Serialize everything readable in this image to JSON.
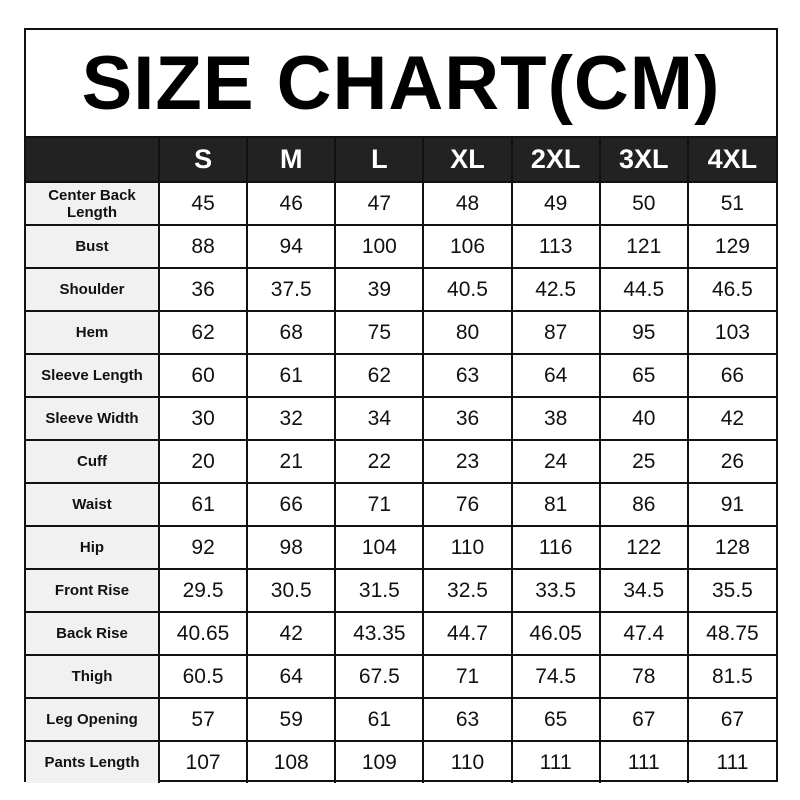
{
  "title": "SIZE CHART(CM)",
  "columns": [
    "",
    "S",
    "M",
    "L",
    "XL",
    "2XL",
    "3XL",
    "4XL"
  ],
  "rows": [
    {
      "label": "Center Back Length",
      "values": [
        "45",
        "46",
        "47",
        "48",
        "49",
        "50",
        "51"
      ]
    },
    {
      "label": "Bust",
      "values": [
        "88",
        "94",
        "100",
        "106",
        "113",
        "121",
        "129"
      ]
    },
    {
      "label": "Shoulder",
      "values": [
        "36",
        "37.5",
        "39",
        "40.5",
        "42.5",
        "44.5",
        "46.5"
      ]
    },
    {
      "label": "Hem",
      "values": [
        "62",
        "68",
        "75",
        "80",
        "87",
        "95",
        "103"
      ]
    },
    {
      "label": "Sleeve Length",
      "values": [
        "60",
        "61",
        "62",
        "63",
        "64",
        "65",
        "66"
      ]
    },
    {
      "label": "Sleeve Width",
      "values": [
        "30",
        "32",
        "34",
        "36",
        "38",
        "40",
        "42"
      ]
    },
    {
      "label": "Cuff",
      "values": [
        "20",
        "21",
        "22",
        "23",
        "24",
        "25",
        "26"
      ]
    },
    {
      "label": "Waist",
      "values": [
        "61",
        "66",
        "71",
        "76",
        "81",
        "86",
        "91"
      ]
    },
    {
      "label": "Hip",
      "values": [
        "92",
        "98",
        "104",
        "110",
        "116",
        "122",
        "128"
      ]
    },
    {
      "label": "Front Rise",
      "values": [
        "29.5",
        "30.5",
        "31.5",
        "32.5",
        "33.5",
        "34.5",
        "35.5"
      ]
    },
    {
      "label": "Back Rise",
      "values": [
        "40.65",
        "42",
        "43.35",
        "44.7",
        "46.05",
        "47.4",
        "48.75"
      ]
    },
    {
      "label": "Thigh",
      "values": [
        "60.5",
        "64",
        "67.5",
        "71",
        "74.5",
        "78",
        "81.5"
      ]
    },
    {
      "label": "Leg Opening",
      "values": [
        "57",
        "59",
        "61",
        "63",
        "65",
        "67",
        "67"
      ]
    },
    {
      "label": "Pants Length",
      "values": [
        "107",
        "108",
        "109",
        "110",
        "111",
        "111",
        "111"
      ]
    }
  ]
}
